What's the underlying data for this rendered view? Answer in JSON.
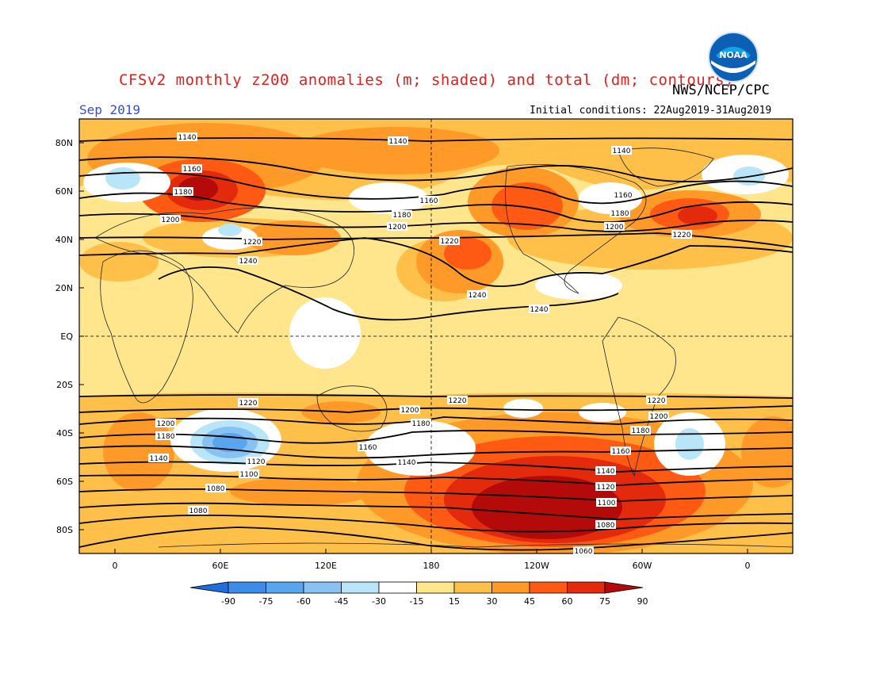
{
  "header": {
    "title": "CFSv2 monthly z200 anomalies (m; shaded) and total (dm; contours)",
    "agency": "NWS/NCEP/CPC",
    "month": "Sep 2019",
    "initial_conditions": "Initial conditions: 22Aug2019-31Aug2019"
  },
  "logo": {
    "icon": "noaa-logo",
    "text": "NOAA"
  },
  "axes": {
    "lat_labels": [
      "80N",
      "60N",
      "40N",
      "20N",
      "EQ",
      "20S",
      "40S",
      "60S",
      "80S"
    ],
    "lon_labels": [
      "0",
      "60E",
      "120E",
      "180",
      "120W",
      "60W",
      "0"
    ]
  },
  "colorbar": {
    "ticks": [
      "-90",
      "-75",
      "-60",
      "-45",
      "-30",
      "-15",
      "15",
      "30",
      "45",
      "60",
      "75",
      "90"
    ],
    "colors": [
      "#1e6ee0",
      "#3c8ce8",
      "#5aa6ee",
      "#88c2f3",
      "#b8e6f8",
      "#ffffff",
      "#ffe68c",
      "#ffc04a",
      "#ff9a28",
      "#ff5a14",
      "#e42a0c",
      "#b40a0a"
    ]
  },
  "contour_labels": {
    "north": [
      "1140",
      "1140",
      "1140",
      "1160",
      "1180",
      "1200",
      "1160",
      "1180",
      "1200",
      "1160",
      "1180",
      "1200",
      "1220",
      "1220",
      "1220",
      "1240",
      "1240",
      "1240"
    ],
    "south": [
      "1220",
      "1220",
      "1220",
      "1200",
      "1200",
      "1200",
      "1180",
      "1180",
      "1180",
      "1160",
      "1160",
      "1140",
      "1140",
      "1140",
      "1120",
      "1120",
      "1100",
      "1100",
      "1080",
      "1080",
      "1080",
      "1060"
    ]
  }
}
